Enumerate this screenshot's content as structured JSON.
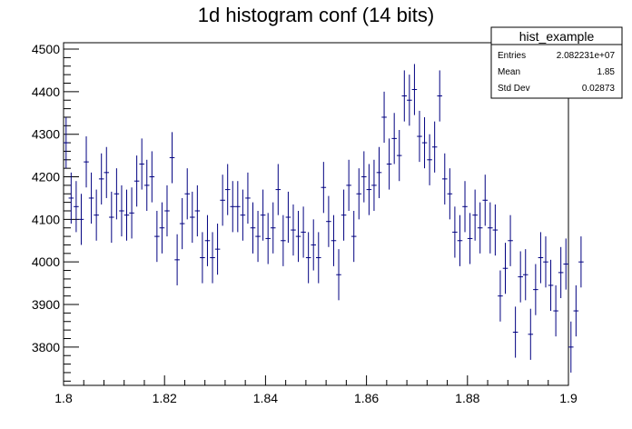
{
  "chart_data": {
    "type": "histogram",
    "title": "1d histogram conf (14 bits)",
    "xlim": [
      1.8,
      1.9
    ],
    "ylim": [
      3710,
      4515
    ],
    "x_ticks": [
      "1.8",
      "1.82",
      "1.84",
      "1.86",
      "1.88",
      "1.9"
    ],
    "y_ticks": [
      "3800",
      "3900",
      "4000",
      "4100",
      "4200",
      "4300",
      "4400",
      "4500"
    ],
    "bin_width": 0.001,
    "error_bar_sigma": 60,
    "marker_color": "#000080",
    "values": [
      4280,
      4150,
      4130,
      4100,
      4235,
      4150,
      4110,
      4195,
      4210,
      4105,
      4160,
      4120,
      4110,
      4115,
      4190,
      4230,
      4180,
      4200,
      4060,
      4080,
      4120,
      4245,
      4005,
      4090,
      4160,
      4105,
      4120,
      4010,
      4050,
      4010,
      4030,
      4145,
      4170,
      4130,
      4130,
      4110,
      4150,
      4080,
      4060,
      4110,
      4055,
      4080,
      4170,
      4050,
      4105,
      4075,
      4060,
      4070,
      4010,
      4040,
      4010,
      4175,
      4095,
      4050,
      3970,
      4110,
      4180,
      4060,
      4160,
      4200,
      4170,
      4180,
      4210,
      4340,
      4230,
      4290,
      4250,
      4390,
      4380,
      4405,
      4295,
      4280,
      4240,
      4270,
      4390,
      4195,
      4160,
      4070,
      4050,
      4130,
      4055,
      4110,
      4080,
      4145,
      4080,
      4075,
      3920,
      3985,
      4050,
      3835,
      3965,
      3970,
      3830,
      3935,
      4010,
      4000,
      3945,
      3885,
      3975,
      3995,
      3800,
      3885,
      4000
    ],
    "stats": {
      "title": "hist_example",
      "rows": [
        {
          "label": "Entries",
          "value": "2.082231e+07"
        },
        {
          "label": "Mean",
          "value": "1.85"
        },
        {
          "label": "Std Dev",
          "value": "0.02873"
        }
      ]
    }
  }
}
